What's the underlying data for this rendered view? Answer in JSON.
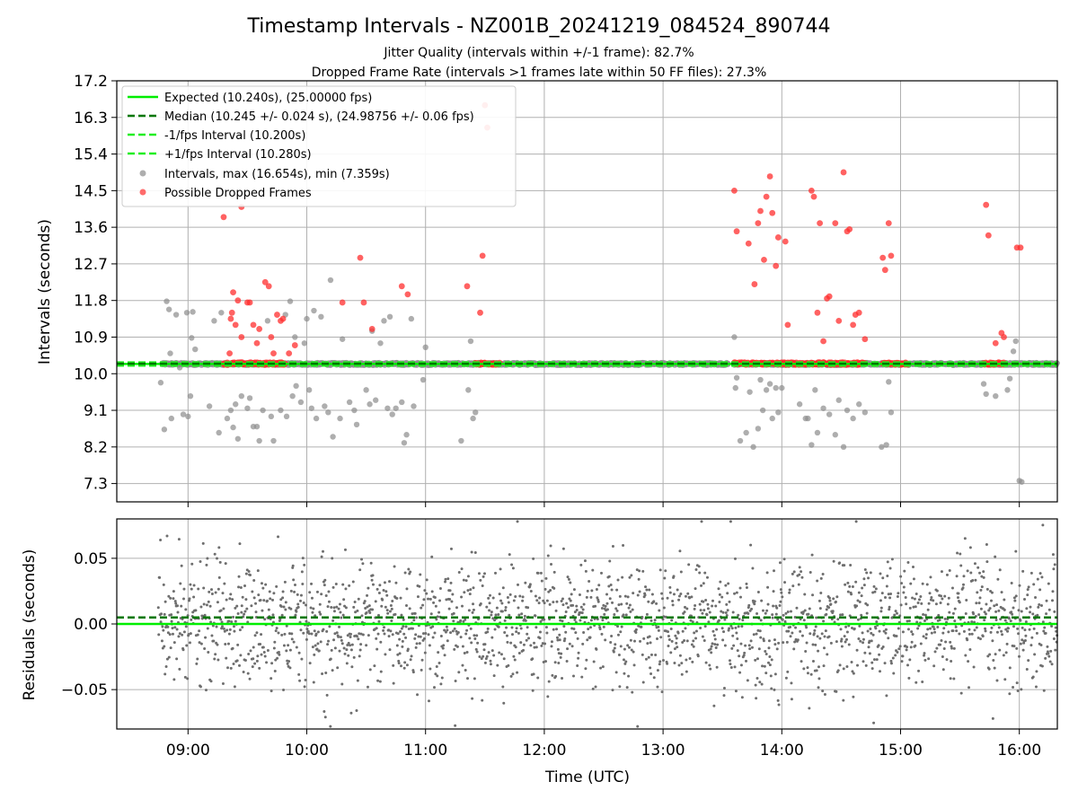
{
  "chart_data": [
    {
      "type": "scatter",
      "panel": "intervals",
      "title": "Timestamp Intervals - NZ001B_20241219_084524_890744",
      "subtitle_lines": [
        "Jitter Quality (intervals within +/-1 frame): 82.7%",
        "Dropped Frame Rate (intervals >1 frames late within 50 FF files): 27.3%"
      ],
      "ylabel": "Intervals (seconds)",
      "xlabel": "",
      "xlim_hours": [
        8.4,
        16.32
      ],
      "ylim": [
        6.85,
        17.2
      ],
      "y_ticks": [
        7.3,
        8.2,
        9.1,
        10.0,
        10.9,
        11.8,
        12.7,
        13.6,
        14.5,
        15.4,
        16.3,
        17.2
      ],
      "y_tick_labels": [
        "7.3",
        "8.2",
        "9.1",
        "10.0",
        "10.9",
        "11.8",
        "12.7",
        "13.6",
        "14.5",
        "15.4",
        "16.3",
        "17.2"
      ],
      "x_ticks_hours": [
        9,
        10,
        11,
        12,
        13,
        14,
        15,
        16
      ],
      "grid": true,
      "legend_position": "top-left",
      "legend": [
        "Expected (10.240s), (25.00000 fps)",
        "Median (10.245 +/- 0.024 s), (24.98756 +/- 0.06 fps)",
        "-1/fps Interval (10.200s)",
        "+1/fps Interval (10.280s)",
        "Intervals, max (16.654s), min (7.359s)",
        "Possible Dropped Frames"
      ],
      "reference_lines": {
        "expected": 10.24,
        "median": 10.245,
        "minus_one_frame": 10.2,
        "plus_one_frame": 10.28
      },
      "dense_band": {
        "center": 10.24,
        "spread": 0.03,
        "dropped_segments_hours": [
          [
            9.3,
            9.82
          ],
          [
            11.42,
            11.63
          ],
          [
            13.6,
            14.7
          ],
          [
            14.85,
            15.07
          ],
          [
            15.7,
            15.88
          ]
        ]
      },
      "interval_outliers": [
        [
          8.77,
          9.78
        ],
        [
          8.8,
          8.63
        ],
        [
          8.82,
          11.78
        ],
        [
          8.84,
          11.58
        ],
        [
          8.85,
          10.5
        ],
        [
          8.86,
          8.9
        ],
        [
          8.9,
          11.45
        ],
        [
          8.93,
          10.15
        ],
        [
          8.96,
          9.0
        ],
        [
          8.99,
          11.5
        ],
        [
          9.0,
          8.95
        ],
        [
          9.02,
          9.45
        ],
        [
          9.03,
          10.88
        ],
        [
          9.04,
          11.52
        ],
        [
          9.06,
          10.6
        ],
        [
          9.18,
          9.2
        ],
        [
          9.22,
          11.3
        ],
        [
          9.26,
          8.55
        ],
        [
          9.28,
          11.5
        ],
        [
          9.33,
          8.9
        ],
        [
          9.36,
          9.1
        ],
        [
          9.38,
          8.68
        ],
        [
          9.4,
          9.25
        ],
        [
          9.42,
          8.4
        ],
        [
          9.45,
          9.45
        ],
        [
          9.5,
          9.15
        ],
        [
          9.52,
          9.4
        ],
        [
          9.55,
          8.7
        ],
        [
          9.58,
          8.7
        ],
        [
          9.6,
          8.35
        ],
        [
          9.63,
          9.1
        ],
        [
          9.67,
          11.3
        ],
        [
          9.7,
          8.95
        ],
        [
          9.72,
          8.35
        ],
        [
          9.78,
          9.1
        ],
        [
          9.82,
          11.45
        ],
        [
          9.83,
          8.95
        ],
        [
          9.86,
          11.78
        ],
        [
          9.88,
          9.45
        ],
        [
          9.9,
          10.9
        ],
        [
          9.91,
          9.7
        ],
        [
          9.95,
          9.3
        ],
        [
          9.98,
          10.75
        ],
        [
          10.0,
          11.35
        ],
        [
          10.02,
          9.6
        ],
        [
          10.04,
          9.15
        ],
        [
          10.06,
          11.55
        ],
        [
          10.08,
          8.9
        ],
        [
          10.12,
          11.4
        ],
        [
          10.15,
          9.2
        ],
        [
          10.18,
          9.05
        ],
        [
          10.22,
          8.45
        ],
        [
          10.2,
          12.3
        ],
        [
          10.28,
          8.9
        ],
        [
          10.3,
          10.85
        ],
        [
          10.36,
          9.3
        ],
        [
          10.4,
          9.1
        ],
        [
          10.42,
          8.75
        ],
        [
          10.5,
          9.6
        ],
        [
          10.53,
          9.25
        ],
        [
          10.55,
          11.05
        ],
        [
          10.58,
          9.35
        ],
        [
          10.62,
          10.75
        ],
        [
          10.65,
          11.3
        ],
        [
          10.68,
          9.15
        ],
        [
          10.7,
          11.4
        ],
        [
          10.72,
          9.0
        ],
        [
          10.75,
          9.15
        ],
        [
          10.8,
          9.3
        ],
        [
          10.82,
          8.3
        ],
        [
          10.84,
          8.5
        ],
        [
          10.88,
          11.35
        ],
        [
          10.9,
          9.2
        ],
        [
          10.98,
          9.85
        ],
        [
          11.0,
          10.65
        ],
        [
          11.3,
          8.35
        ],
        [
          11.36,
          9.6
        ],
        [
          11.38,
          10.8
        ],
        [
          11.4,
          8.9
        ],
        [
          11.42,
          9.05
        ],
        [
          13.6,
          10.9
        ],
        [
          13.61,
          9.65
        ],
        [
          13.62,
          9.9
        ],
        [
          13.65,
          8.35
        ],
        [
          13.7,
          8.55
        ],
        [
          13.73,
          9.55
        ],
        [
          13.76,
          8.2
        ],
        [
          13.8,
          8.65
        ],
        [
          13.82,
          9.85
        ],
        [
          13.84,
          9.1
        ],
        [
          13.87,
          9.6
        ],
        [
          13.9,
          9.75
        ],
        [
          13.92,
          8.9
        ],
        [
          13.95,
          9.65
        ],
        [
          13.97,
          9.05
        ],
        [
          14.0,
          9.65
        ],
        [
          14.15,
          9.25
        ],
        [
          14.2,
          8.9
        ],
        [
          14.22,
          8.9
        ],
        [
          14.25,
          8.25
        ],
        [
          14.28,
          9.6
        ],
        [
          14.3,
          8.55
        ],
        [
          14.35,
          9.15
        ],
        [
          14.4,
          9.0
        ],
        [
          14.45,
          8.5
        ],
        [
          14.48,
          9.35
        ],
        [
          14.52,
          8.2
        ],
        [
          14.55,
          9.1
        ],
        [
          14.6,
          8.9
        ],
        [
          14.65,
          9.25
        ],
        [
          14.7,
          9.05
        ],
        [
          14.84,
          8.2
        ],
        [
          14.88,
          8.25
        ],
        [
          14.9,
          9.8
        ],
        [
          14.92,
          9.05
        ],
        [
          15.7,
          9.75
        ],
        [
          15.72,
          9.5
        ],
        [
          15.8,
          9.45
        ],
        [
          15.9,
          9.6
        ],
        [
          15.92,
          9.88
        ],
        [
          15.95,
          10.55
        ],
        [
          15.97,
          10.8
        ],
        [
          16.0,
          7.37
        ],
        [
          16.02,
          7.34
        ]
      ],
      "dropped_outliers": [
        [
          9.3,
          13.85
        ],
        [
          9.35,
          10.5
        ],
        [
          9.36,
          11.35
        ],
        [
          9.37,
          11.5
        ],
        [
          9.38,
          12.0
        ],
        [
          9.4,
          11.2
        ],
        [
          9.42,
          11.8
        ],
        [
          9.45,
          10.9
        ],
        [
          9.5,
          11.75
        ],
        [
          9.52,
          11.75
        ],
        [
          9.55,
          11.2
        ],
        [
          9.58,
          10.75
        ],
        [
          9.6,
          11.1
        ],
        [
          9.65,
          12.25
        ],
        [
          9.68,
          12.15
        ],
        [
          9.7,
          10.9
        ],
        [
          9.72,
          10.5
        ],
        [
          9.75,
          11.45
        ],
        [
          9.78,
          11.3
        ],
        [
          9.8,
          11.35
        ],
        [
          9.85,
          10.5
        ],
        [
          9.9,
          10.7
        ],
        [
          10.3,
          11.75
        ],
        [
          10.45,
          12.85
        ],
        [
          10.48,
          11.75
        ],
        [
          10.55,
          11.1
        ],
        [
          10.8,
          12.15
        ],
        [
          10.85,
          11.95
        ],
        [
          11.35,
          12.15
        ],
        [
          11.46,
          11.5
        ],
        [
          11.48,
          12.9
        ],
        [
          11.5,
          16.6
        ],
        [
          11.52,
          16.05
        ],
        [
          9.45,
          14.1
        ],
        [
          13.6,
          14.5
        ],
        [
          13.62,
          13.5
        ],
        [
          13.72,
          13.2
        ],
        [
          13.77,
          12.2
        ],
        [
          13.8,
          13.7
        ],
        [
          13.82,
          14.0
        ],
        [
          13.85,
          12.8
        ],
        [
          13.87,
          14.35
        ],
        [
          13.9,
          14.85
        ],
        [
          13.92,
          13.95
        ],
        [
          13.95,
          12.65
        ],
        [
          13.97,
          13.35
        ],
        [
          14.03,
          13.25
        ],
        [
          14.05,
          11.2
        ],
        [
          14.25,
          14.5
        ],
        [
          14.27,
          14.35
        ],
        [
          14.3,
          11.5
        ],
        [
          14.32,
          13.7
        ],
        [
          14.35,
          10.8
        ],
        [
          14.38,
          11.85
        ],
        [
          14.4,
          11.9
        ],
        [
          14.45,
          13.7
        ],
        [
          14.48,
          11.3
        ],
        [
          14.52,
          14.95
        ],
        [
          14.55,
          13.5
        ],
        [
          14.57,
          13.55
        ],
        [
          14.6,
          11.2
        ],
        [
          14.62,
          11.45
        ],
        [
          14.65,
          11.5
        ],
        [
          14.7,
          10.85
        ],
        [
          14.85,
          12.85
        ],
        [
          14.87,
          12.55
        ],
        [
          14.9,
          13.7
        ],
        [
          14.92,
          12.9
        ],
        [
          15.72,
          14.15
        ],
        [
          15.74,
          13.4
        ],
        [
          15.8,
          10.75
        ],
        [
          15.85,
          11.0
        ],
        [
          15.87,
          10.9
        ],
        [
          15.98,
          13.1
        ],
        [
          16.01,
          13.1
        ]
      ]
    },
    {
      "type": "scatter",
      "panel": "residuals",
      "ylabel": "Residuals (seconds)",
      "xlabel": "Time (UTC)",
      "xlim_hours": [
        8.4,
        16.32
      ],
      "ylim": [
        -0.08,
        0.08
      ],
      "y_ticks": [
        -0.05,
        0.0,
        0.05
      ],
      "y_tick_labels": [
        "−0.05",
        "0.00",
        "0.05"
      ],
      "x_ticks_hours": [
        9,
        10,
        11,
        12,
        13,
        14,
        15,
        16
      ],
      "x_tick_labels": [
        "09:00",
        "10:00",
        "11:00",
        "12:00",
        "13:00",
        "14:00",
        "15:00",
        "16:00"
      ],
      "grid": true,
      "reference_lines": {
        "zero": 0.0,
        "median_offset": 0.005
      },
      "residual_spread": 0.024,
      "residual_range_hours": [
        8.75,
        16.32
      ]
    }
  ],
  "colors": {
    "expected": "#00ee00",
    "median": "#007700",
    "frame_band": "#22ee22",
    "intervals": "#8c8c8c",
    "dropped": "#ff2d2d",
    "residual_points": "#6e6e6e",
    "grid": "#b0b0b0"
  }
}
